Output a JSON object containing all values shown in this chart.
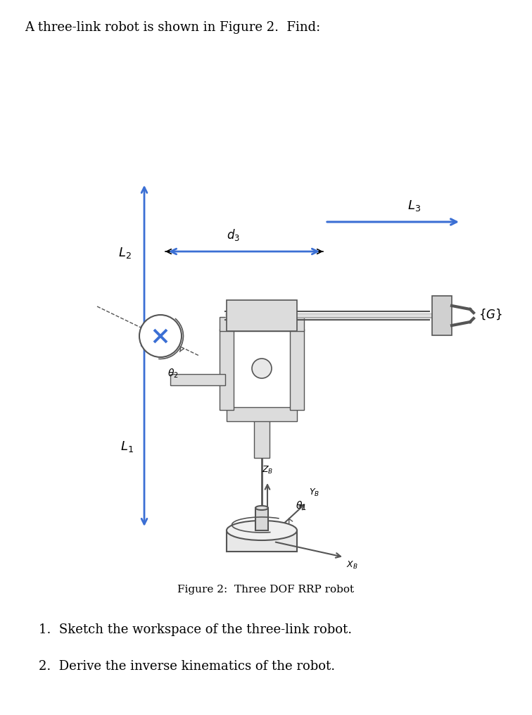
{
  "title_text": "A three-link robot is shown in Figure 2.  Find:",
  "caption_text": "Figure 2:  Three DOF RRP robot",
  "question1": "1.  Sketch the workspace of the three-link robot.",
  "question2": "2.  Derive the inverse kinematics of the robot.",
  "bg_color": "#ffffff",
  "text_color": "#000000",
  "blue_color": "#3b6fd4",
  "gray_color": "#666666",
  "robot_edge": "#555555",
  "title_fontsize": 13,
  "caption_fontsize": 11,
  "question_fontsize": 13
}
